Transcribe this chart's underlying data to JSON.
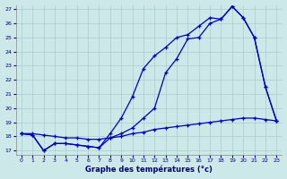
{
  "xlabel": "Graphe des températures (°c)",
  "background_color": "#cce8e8",
  "grid_color": "#aacccc",
  "line_color": "#0000bb",
  "marker": "+",
  "xlim": [
    -0.5,
    23.5
  ],
  "ylim": [
    16.7,
    27.3
  ],
  "yticks": [
    17,
    18,
    19,
    20,
    21,
    22,
    23,
    24,
    25,
    26,
    27
  ],
  "xticks": [
    0,
    1,
    2,
    3,
    4,
    5,
    6,
    7,
    8,
    9,
    10,
    11,
    12,
    13,
    14,
    15,
    16,
    17,
    18,
    19,
    20,
    21,
    22,
    23
  ],
  "series": [
    {
      "x": [
        0,
        1,
        2,
        3,
        4,
        5,
        6,
        7,
        8,
        9,
        10,
        11,
        12,
        13,
        14,
        15,
        16,
        17,
        18,
        19,
        20,
        21,
        22,
        23
      ],
      "y": [
        18.2,
        18.2,
        18.1,
        18.0,
        17.9,
        17.9,
        17.8,
        17.8,
        17.9,
        18.0,
        18.2,
        18.3,
        18.5,
        18.6,
        18.7,
        18.8,
        18.9,
        19.0,
        19.1,
        19.2,
        19.3,
        19.3,
        19.2,
        19.1
      ]
    },
    {
      "x": [
        0,
        1,
        2,
        3,
        4,
        5,
        6,
        7,
        8,
        9,
        10,
        11,
        12,
        13,
        14,
        15,
        16,
        17,
        18,
        19,
        20,
        21,
        22,
        23
      ],
      "y": [
        18.2,
        18.1,
        17.0,
        17.5,
        17.5,
        17.4,
        17.3,
        17.2,
        17.9,
        18.2,
        18.6,
        19.3,
        20.0,
        22.5,
        23.5,
        24.9,
        25.0,
        26.0,
        26.3,
        27.2,
        26.4,
        25.0,
        21.5,
        19.1
      ]
    },
    {
      "x": [
        0,
        1,
        2,
        3,
        4,
        5,
        6,
        7,
        8,
        9,
        10,
        11,
        12,
        13,
        14,
        15,
        16,
        17,
        18,
        19,
        20,
        21,
        22,
        23
      ],
      "y": [
        18.2,
        18.1,
        17.0,
        17.5,
        17.5,
        17.4,
        17.3,
        17.2,
        18.2,
        19.3,
        20.8,
        22.8,
        23.7,
        24.3,
        25.0,
        25.2,
        25.8,
        26.4,
        26.3,
        27.2,
        26.4,
        25.0,
        21.5,
        19.1
      ]
    }
  ]
}
